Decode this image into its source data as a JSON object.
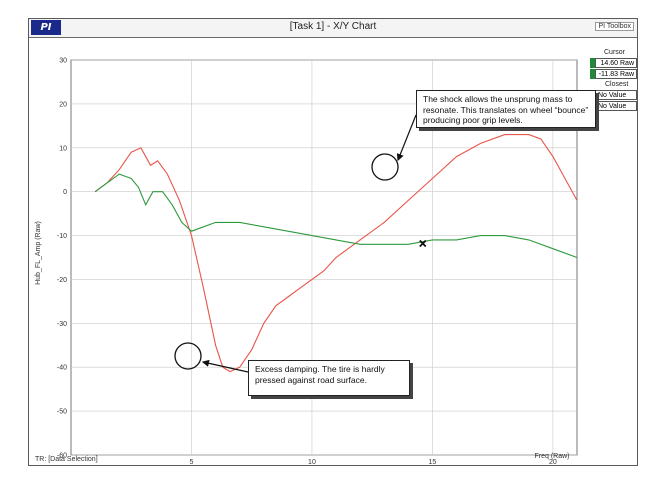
{
  "window": {
    "title": "[Task 1] - X/Y Chart",
    "logo_text": "PI",
    "brand": "PI Toolbox"
  },
  "side_panel": {
    "cursor_title": "Cursor",
    "cursor_values": [
      "14.60 Raw",
      "-11.83 Raw"
    ],
    "closest_title": "Closest",
    "closest_values": [
      "No Value",
      "No Value"
    ],
    "colors": {
      "red": "#e8554a",
      "green": "#2f9b3e",
      "indicator": "#1f8a3a"
    }
  },
  "status_text": "TR: [Data Selection]",
  "annotations": {
    "top": "The shock allows the unsprung mass to resonate. This translates on wheel “bounce” producing poor grip levels.",
    "bottom": "Excess damping. The tire is hardly pressed against road surface."
  },
  "cursor_marker": {
    "x": 14.6,
    "y": -11.8
  },
  "chart_data": {
    "type": "line",
    "xlabel": "Freq (Raw)",
    "ylabel": "Hub_FL_Amp (Raw)",
    "xlim": [
      0,
      21
    ],
    "ylim": [
      -60,
      30
    ],
    "x_ticks": [
      5,
      10,
      15,
      20
    ],
    "y_ticks": [
      30,
      20,
      10,
      0,
      -10,
      -20,
      -30,
      -40,
      -50,
      -60
    ],
    "grid": true,
    "series": [
      {
        "color": "#e8554a",
        "x": [
          1.0,
          1.5,
          2.0,
          2.5,
          2.9,
          3.3,
          3.6,
          4.0,
          4.5,
          5.0,
          5.5,
          6.0,
          6.3,
          6.6,
          7.0,
          7.5,
          8.0,
          8.5,
          9.0,
          9.5,
          10.0,
          10.5,
          11.0,
          12.0,
          13.0,
          14.0,
          15.0,
          16.0,
          17.0,
          18.0,
          19.0,
          19.5,
          20.0,
          20.5,
          21.0
        ],
        "y": [
          0,
          2,
          5,
          9,
          10,
          6,
          7,
          4,
          -2,
          -10,
          -22,
          -35,
          -40,
          -41,
          -40,
          -36,
          -30,
          -26,
          -24,
          -22,
          -20,
          -18,
          -15,
          -11,
          -7,
          -2,
          3,
          8,
          11,
          13,
          13,
          12,
          8,
          3,
          -2
        ]
      },
      {
        "color": "#2f9b3e",
        "x": [
          1.0,
          1.5,
          2.0,
          2.5,
          2.8,
          3.1,
          3.4,
          3.8,
          4.2,
          4.6,
          5.0,
          5.5,
          6.0,
          7.0,
          8.0,
          9.0,
          10.0,
          11.0,
          12.0,
          13.0,
          14.0,
          15.0,
          16.0,
          17.0,
          18.0,
          19.0,
          20.0,
          21.0
        ],
        "y": [
          0,
          2,
          4,
          3,
          1,
          -3,
          0,
          0,
          -3,
          -7,
          -9,
          -8,
          -7,
          -7,
          -8,
          -9,
          -10,
          -11,
          -12,
          -12,
          -12,
          -11,
          -11,
          -10,
          -10,
          -11,
          -13,
          -15
        ]
      }
    ]
  }
}
